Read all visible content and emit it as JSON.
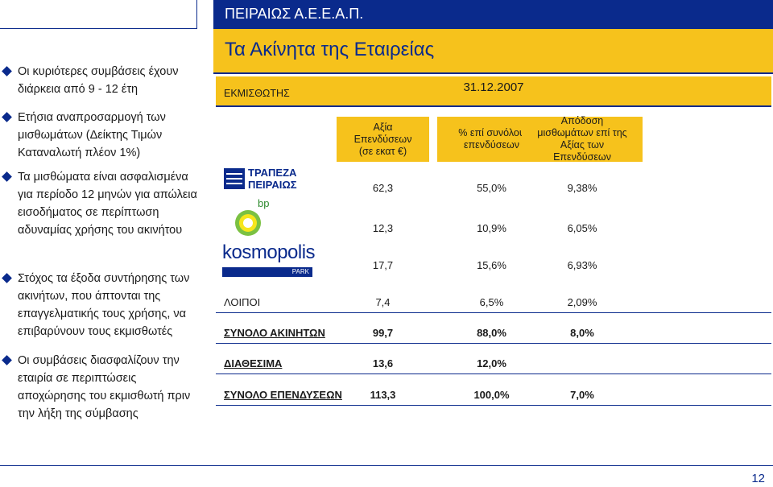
{
  "header": {
    "company": "ΠΕΙΡΑΙΩΣ Α.Ε.Ε.Α.Π.",
    "title": "Τα Ακίνητα της Εταιρείας"
  },
  "bullets": [
    "Οι κυριότερες συμβάσεις έχουν διάρκεια από 9 - 12 έτη",
    "Ετήσια αναπροσαρμογή των μισθωμάτων (Δείκτης Τιμών Καταναλωτή πλέον 1%)",
    "Τα μισθώματα είναι ασφαλισμένα για περίοδο 12 μηνών για απώλεια εισοδήματος σε περίπτωση αδυναμίας χρήσης του ακινήτου",
    "Στόχος τα έξοδα συντήρησης των ακινήτων, που άπτονται της επαγγελματικής τους χρήσης, να επιβαρύνουν τους εκμισθωτές",
    "Οι συμβάσεις διασφαλίζουν την εταιρία σε περιπτώσεις αποχώρησης του εκμισθωτή πριν την λήξη της σύμβασης"
  ],
  "table": {
    "lessee_header": "ΕΚΜΙΣΘΩΤΗΣ",
    "date": "31.12.2007",
    "col1": [
      "Αξία",
      "Επενδύσεων",
      "(σε εκατ €)"
    ],
    "col2": [
      "% επί συνόλου",
      "επενδύσεων"
    ],
    "col3": [
      "Απόδοση",
      "μισθωμάτων επί της",
      "Αξίας των",
      "Επενδύσεων"
    ],
    "logos": {
      "bank_line1": "ΤΡΑΠΕΖΑ",
      "bank_line2": "ΠΕΙΡΑΙΩΣ",
      "bp": "bp",
      "kosmo": "kosmopolis",
      "park": "PARK"
    },
    "rows": [
      {
        "label": "",
        "value": "62,3",
        "pct": "55,0%",
        "yield": "9,38%"
      },
      {
        "label": "",
        "value": "12,3",
        "pct": "10,9%",
        "yield": "6,05%"
      },
      {
        "label": "",
        "value": "17,7",
        "pct": "15,6%",
        "yield": "6,93%"
      },
      {
        "label": "ΛΟΙΠΟΙ",
        "value": "7,4",
        "pct": "6,5%",
        "yield": "2,09%"
      },
      {
        "label": "ΣΥΝΟΛΟ ΑΚΙΝΗΤΩΝ",
        "value": "99,7",
        "pct": "88,0%",
        "yield": "8,0%"
      },
      {
        "label": "ΔΙΑΘΕΣΙΜΑ",
        "value": "13,6",
        "pct": "12,0%",
        "yield": ""
      },
      {
        "label": "ΣΥΝΟΛΟ ΕΠΕΝΔΥΣΕΩΝ",
        "value": "113,3",
        "pct": "100,0%",
        "yield": "7,0%"
      }
    ]
  },
  "page_number": "12"
}
